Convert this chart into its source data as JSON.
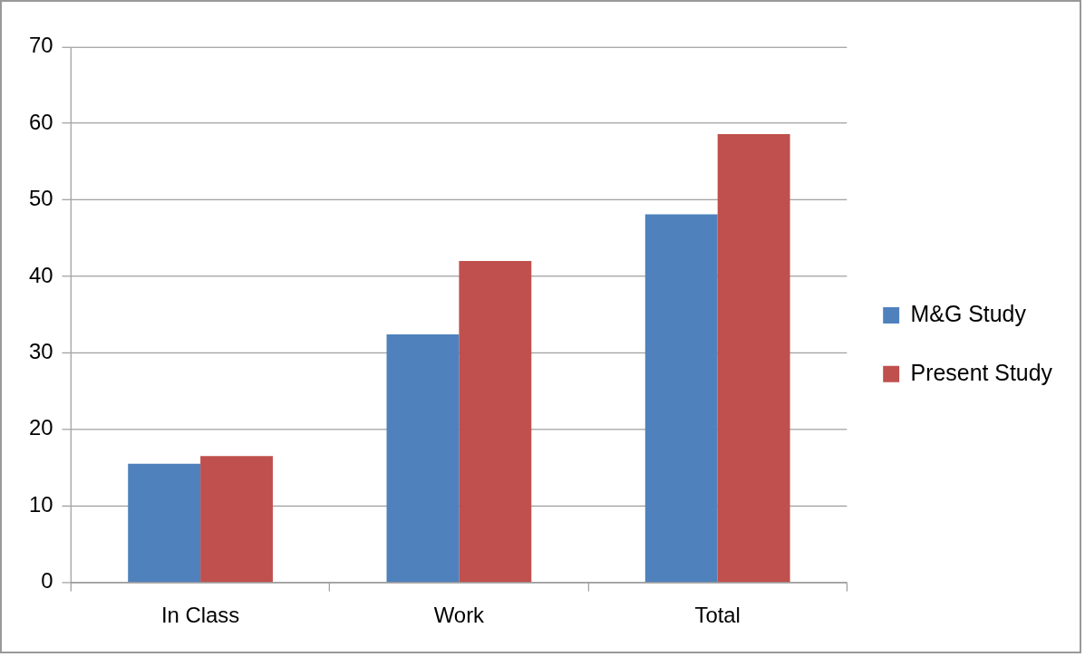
{
  "chart_data": {
    "type": "bar",
    "categories": [
      "In Class",
      "Work",
      "Total"
    ],
    "series": [
      {
        "name": "M&G Study",
        "color": "#4f81bd",
        "values": [
          15.5,
          32.4,
          48.1
        ]
      },
      {
        "name": "Present Study",
        "color": "#c0504d",
        "values": [
          16.5,
          42,
          58.6
        ]
      }
    ],
    "ylim": [
      0,
      70
    ],
    "yticks": [
      0,
      10,
      20,
      30,
      40,
      50,
      60,
      70
    ],
    "grid": "y",
    "legend": "right"
  }
}
